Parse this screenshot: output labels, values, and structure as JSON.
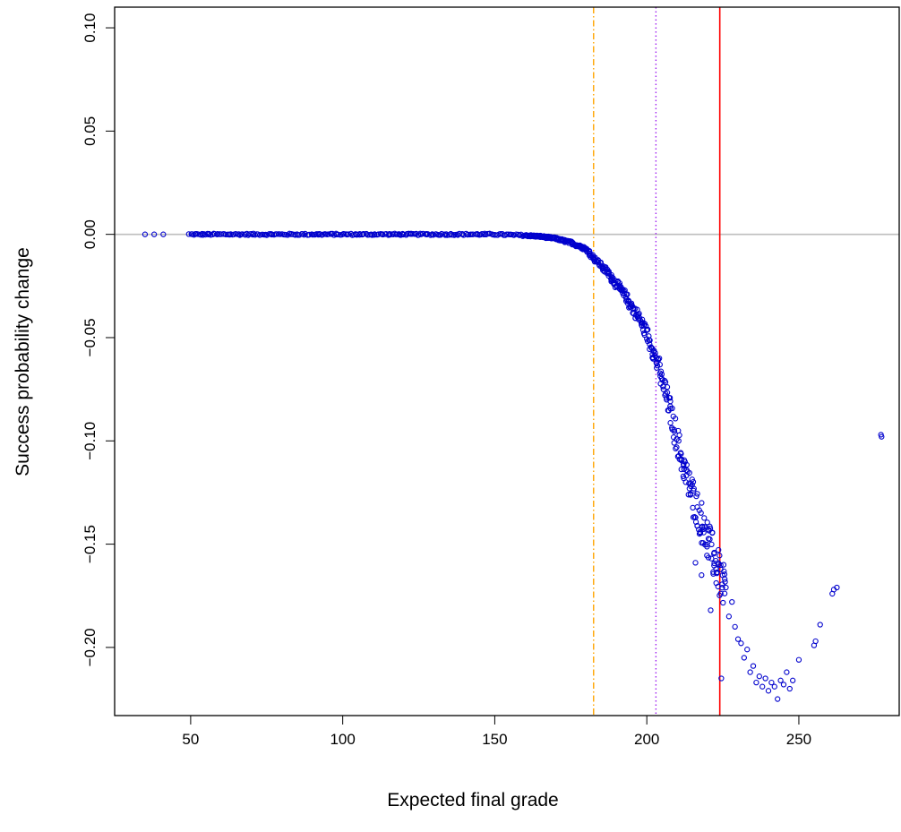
{
  "chart_data": {
    "type": "scatter",
    "title": "",
    "xlabel": "Expected final grade",
    "ylabel": "Success probability change",
    "xlim": [
      25,
      283
    ],
    "ylim": [
      -0.233,
      0.11
    ],
    "x_ticks": [
      50,
      100,
      150,
      200,
      250
    ],
    "y_ticks": [
      0.1,
      0.05,
      0.0,
      -0.05,
      -0.1,
      -0.15,
      -0.2
    ],
    "x_tick_labels": [
      "50",
      "100",
      "150",
      "200",
      "250"
    ],
    "y_tick_labels": [
      "0.10",
      "0.05",
      "0.00",
      "−0.05",
      "−0.10",
      "−0.15",
      "−0.20"
    ],
    "grid": false,
    "point_color": "#0000cd",
    "reference_lines": [
      {
        "orientation": "horizontal",
        "value": 0.0,
        "color": "#bebebe",
        "style": "solid"
      },
      {
        "orientation": "vertical",
        "value": 182.5,
        "color": "#ffa500",
        "style": "dashdot"
      },
      {
        "orientation": "vertical",
        "value": 203,
        "color": "#a020f0",
        "style": "dotted"
      },
      {
        "orientation": "vertical",
        "value": 224,
        "color": "#ff0000",
        "style": "solid"
      }
    ],
    "trend_points": [
      [
        50,
        0.0
      ],
      [
        100,
        0.0
      ],
      [
        150,
        0.0
      ],
      [
        160,
        -0.0005
      ],
      [
        165,
        -0.001
      ],
      [
        170,
        -0.002
      ],
      [
        175,
        -0.004
      ],
      [
        180,
        -0.007
      ],
      [
        183,
        -0.012
      ],
      [
        185,
        -0.015
      ],
      [
        188,
        -0.02
      ],
      [
        190,
        -0.024
      ],
      [
        193,
        -0.03
      ],
      [
        195,
        -0.035
      ],
      [
        198,
        -0.042
      ],
      [
        200,
        -0.048
      ],
      [
        202,
        -0.056
      ],
      [
        204,
        -0.065
      ],
      [
        206,
        -0.076
      ],
      [
        208,
        -0.087
      ],
      [
        210,
        -0.1
      ],
      [
        212,
        -0.112
      ],
      [
        214,
        -0.122
      ],
      [
        216,
        -0.131
      ],
      [
        218,
        -0.139
      ],
      [
        220,
        -0.148
      ],
      [
        222,
        -0.157
      ],
      [
        224,
        -0.165
      ],
      [
        226,
        -0.174
      ],
      [
        228,
        -0.184
      ],
      [
        230,
        -0.195
      ],
      [
        232,
        -0.203
      ],
      [
        234,
        -0.208
      ],
      [
        236,
        -0.213
      ],
      [
        238,
        -0.216
      ],
      [
        240,
        -0.218
      ],
      [
        243,
        -0.219
      ],
      [
        246,
        -0.218
      ]
    ],
    "points": [
      [
        35,
        0.0
      ],
      [
        38,
        0.0
      ],
      [
        41,
        0.0
      ],
      [
        226,
        -0.171
      ],
      [
        227,
        -0.185
      ],
      [
        228,
        -0.178
      ],
      [
        229,
        -0.19
      ],
      [
        230,
        -0.196
      ],
      [
        231,
        -0.198
      ],
      [
        232,
        -0.205
      ],
      [
        233,
        -0.201
      ],
      [
        234,
        -0.212
      ],
      [
        235,
        -0.209
      ],
      [
        236,
        -0.217
      ],
      [
        237,
        -0.214
      ],
      [
        238,
        -0.219
      ],
      [
        239,
        -0.215
      ],
      [
        240,
        -0.221
      ],
      [
        241,
        -0.217
      ],
      [
        242,
        -0.219
      ],
      [
        243,
        -0.225
      ],
      [
        244,
        -0.216
      ],
      [
        245,
        -0.218
      ],
      [
        246,
        -0.212
      ],
      [
        247,
        -0.22
      ],
      [
        248,
        -0.216
      ],
      [
        250,
        -0.206
      ],
      [
        255,
        -0.199
      ],
      [
        255.5,
        -0.197
      ],
      [
        257,
        -0.189
      ],
      [
        261,
        -0.174
      ],
      [
        261.5,
        -0.172
      ],
      [
        262.5,
        -0.171
      ],
      [
        277,
        -0.097
      ],
      [
        277.2,
        -0.098
      ],
      [
        224.5,
        -0.215
      ],
      [
        221,
        -0.182
      ],
      [
        218,
        -0.165
      ],
      [
        216,
        -0.159
      ]
    ]
  }
}
